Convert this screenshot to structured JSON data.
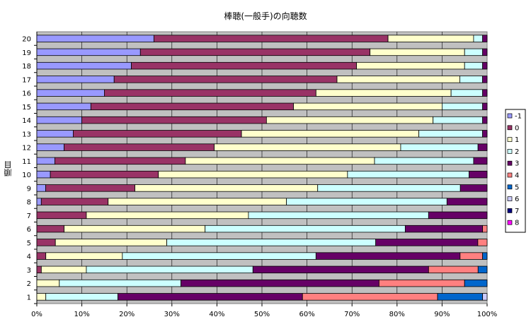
{
  "chart_data": {
    "type": "bar",
    "orientation": "horizontal",
    "stacked": "percent",
    "title": "棒聴(一般手)の向聴数",
    "xlabel": "",
    "ylabel": "順目",
    "xlim": [
      0,
      100
    ],
    "x_ticks": [
      "0%",
      "10%",
      "20%",
      "30%",
      "40%",
      "50%",
      "60%",
      "70%",
      "80%",
      "90%",
      "100%"
    ],
    "categories": [
      "1",
      "2",
      "3",
      "4",
      "5",
      "6",
      "7",
      "8",
      "9",
      "10",
      "11",
      "12",
      "13",
      "14",
      "15",
      "16",
      "17",
      "18",
      "19",
      "20"
    ],
    "legend_position": "right",
    "plot_background": "#c0c0c0",
    "grid": true,
    "series": [
      {
        "name": "-1",
        "color": "#9999ff",
        "values": [
          0,
          0,
          0,
          0,
          0,
          0,
          0,
          1,
          2,
          3,
          4,
          6,
          8,
          10,
          12,
          15,
          17,
          21,
          23,
          26
        ]
      },
      {
        "name": "0",
        "color": "#993366",
        "values": [
          0,
          0,
          1,
          2,
          4,
          6,
          11,
          15,
          20,
          24,
          29,
          33,
          37,
          41,
          45,
          47,
          49,
          50,
          51,
          52
        ]
      },
      {
        "name": "1",
        "color": "#ffffcc",
        "values": [
          2,
          5,
          10,
          17,
          24,
          31,
          36,
          40,
          41,
          42,
          42,
          41,
          39,
          37,
          33,
          30,
          27,
          24,
          21,
          19
        ]
      },
      {
        "name": "2",
        "color": "#ccffff",
        "values": [
          16,
          27,
          37,
          43,
          45,
          44,
          40,
          36,
          32,
          27,
          22,
          17,
          14,
          11,
          9,
          7,
          5,
          4,
          4,
          2
        ]
      },
      {
        "name": "3",
        "color": "#660066",
        "values": [
          41,
          44,
          39,
          32,
          22,
          17,
          13,
          9,
          6,
          4,
          3,
          2,
          1,
          1,
          1,
          1,
          1,
          1,
          1,
          1
        ]
      },
      {
        "name": "4",
        "color": "#ff8080",
        "values": [
          30,
          19,
          11,
          5,
          2,
          1,
          0,
          0,
          0,
          0,
          0,
          0,
          0,
          0,
          0,
          0,
          0,
          0,
          0,
          0
        ]
      },
      {
        "name": "5",
        "color": "#0066cc",
        "values": [
          10,
          5,
          2,
          1,
          0,
          0,
          0,
          0,
          0,
          0,
          0,
          0,
          0,
          0,
          0,
          0,
          0,
          0,
          0,
          0
        ]
      },
      {
        "name": "6",
        "color": "#ccccff",
        "values": [
          1,
          0,
          0,
          0,
          0,
          0,
          0,
          0,
          0,
          0,
          0,
          0,
          0,
          0,
          0,
          0,
          0,
          0,
          0,
          0
        ]
      },
      {
        "name": "7",
        "color": "#000080",
        "values": [
          0,
          0,
          0,
          0,
          0,
          0,
          0,
          0,
          0,
          0,
          0,
          0,
          0,
          0,
          0,
          0,
          0,
          0,
          0,
          0
        ]
      },
      {
        "name": "8",
        "color": "#ff00ff",
        "values": [
          0,
          0,
          0,
          0,
          0,
          0,
          0,
          0,
          0,
          0,
          0,
          0,
          0,
          0,
          0,
          0,
          0,
          0,
          0,
          0
        ]
      }
    ]
  }
}
